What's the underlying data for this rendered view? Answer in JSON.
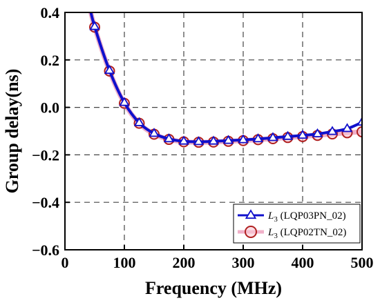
{
  "chart_data": {
    "type": "line",
    "xlabel": "Frequency (MHz)",
    "ylabel": "Group delay(ns)",
    "xlim": [
      0,
      500
    ],
    "ylim": [
      -0.6,
      0.4
    ],
    "xticks": [
      0,
      100,
      200,
      300,
      400,
      500
    ],
    "yticks": [
      -0.6,
      -0.4,
      -0.2,
      0.0,
      0.2,
      0.4
    ],
    "xtick_labels": [
      "0",
      "100",
      "200",
      "300",
      "400",
      "500"
    ],
    "ytick_labels": [
      "−0.6",
      "−0.4",
      "−0.2",
      "0.0",
      "0.2",
      "0.4"
    ],
    "grid": true,
    "grid_style": "dashed",
    "legend_position": "bottom-right",
    "series": [
      {
        "name_main": "L",
        "name_sub": "3",
        "name_rest": " (LQP03PN_02)",
        "color": "#1010cc",
        "marker": "triangle",
        "x": [
          40,
          50,
          75,
          100,
          125,
          150,
          175,
          200,
          225,
          250,
          275,
          300,
          325,
          350,
          375,
          400,
          425,
          450,
          475,
          500
        ],
        "y": [
          0.44,
          0.34,
          0.155,
          0.02,
          -0.065,
          -0.11,
          -0.133,
          -0.143,
          -0.145,
          -0.143,
          -0.14,
          -0.137,
          -0.133,
          -0.128,
          -0.123,
          -0.118,
          -0.112,
          -0.102,
          -0.09,
          -0.063
        ]
      },
      {
        "name_main": "L",
        "name_sub": "3",
        "name_rest": " (LQP02TN_02)",
        "color": "#b02020",
        "line_color": "#f0b0c8",
        "marker": "circle",
        "x": [
          40,
          50,
          75,
          100,
          125,
          150,
          175,
          200,
          225,
          250,
          275,
          300,
          325,
          350,
          375,
          400,
          425,
          450,
          475,
          500
        ],
        "y": [
          0.44,
          0.338,
          0.153,
          0.017,
          -0.067,
          -0.113,
          -0.135,
          -0.145,
          -0.147,
          -0.146,
          -0.143,
          -0.14,
          -0.136,
          -0.132,
          -0.127,
          -0.123,
          -0.118,
          -0.112,
          -0.107,
          -0.103
        ]
      }
    ]
  }
}
